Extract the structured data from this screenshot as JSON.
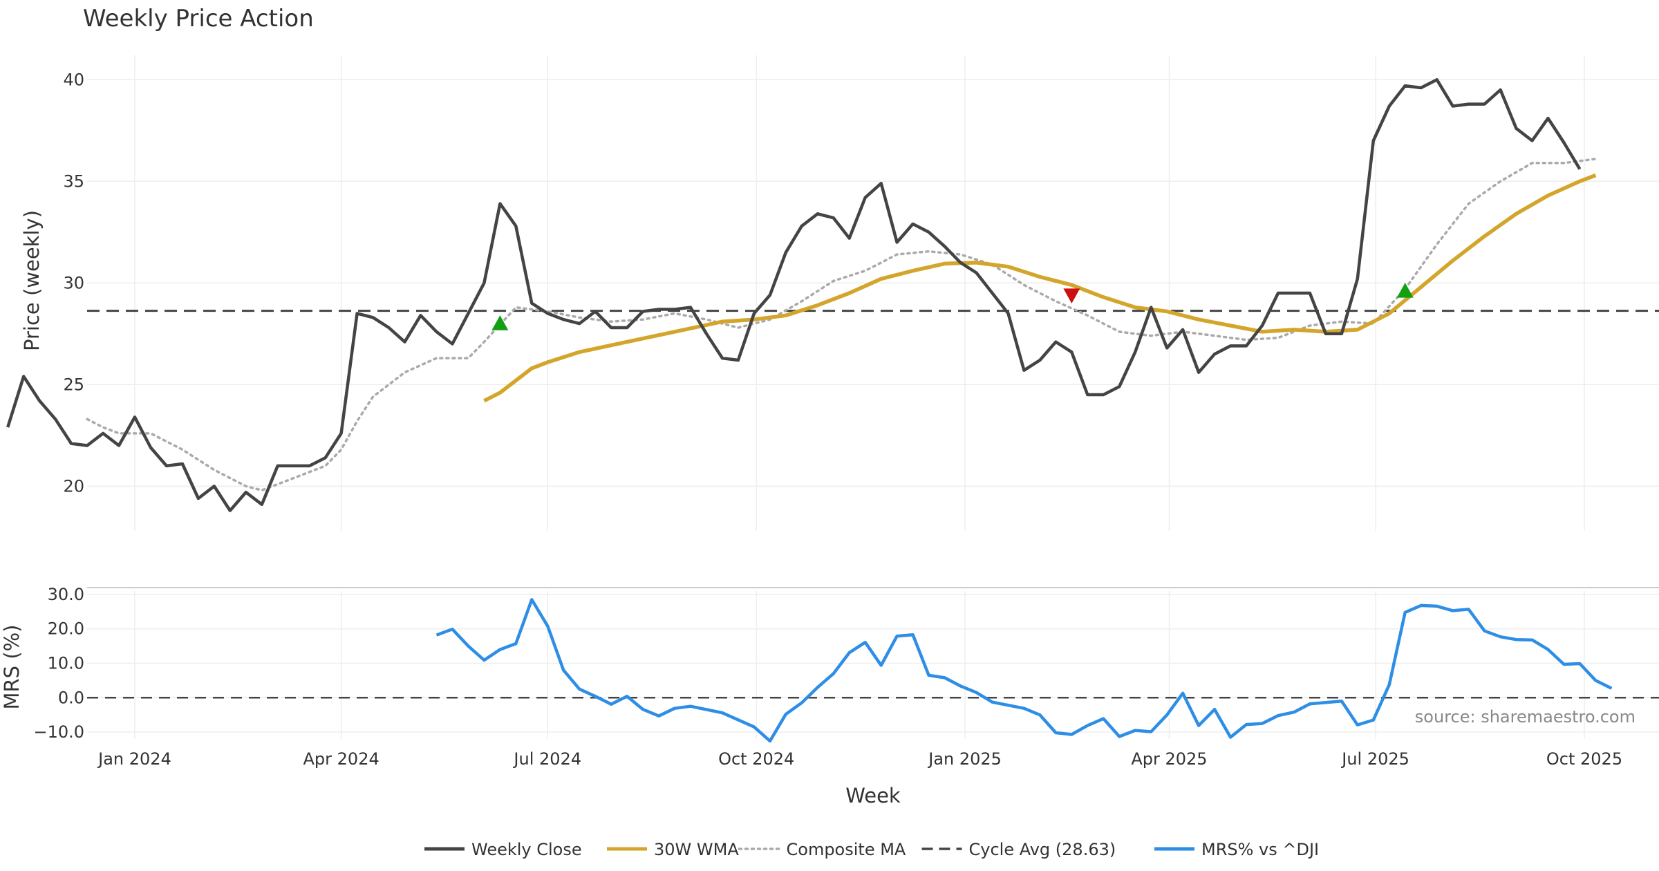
{
  "chart_data": {
    "type": "line",
    "title": "Weekly Price Action",
    "source": "source: sharemaestro.com",
    "xlabel": "Week",
    "x_ticks": [
      {
        "label": "Jan 2024",
        "date": "2024-01-01"
      },
      {
        "label": "Apr 2024",
        "date": "2024-04-01"
      },
      {
        "label": "Jul 2024",
        "date": "2024-07-01"
      },
      {
        "label": "Oct 2024",
        "date": "2024-10-01"
      },
      {
        "label": "Jan 2025",
        "date": "2025-01-01"
      },
      {
        "label": "Apr 2025",
        "date": "2025-04-01"
      },
      {
        "label": "Jul 2025",
        "date": "2025-07-01"
      },
      {
        "label": "Oct 2025",
        "date": "2025-10-01"
      }
    ],
    "price_panel": {
      "ylabel": "Price (weekly)",
      "ylim": [
        17.8,
        41.2
      ],
      "yticks": [
        20,
        25,
        30,
        35,
        40
      ],
      "grid": true,
      "weekly_close": [
        [
          "2023-11-06",
          22.9
        ],
        [
          "2023-11-13",
          25.4
        ],
        [
          "2023-11-20",
          24.2
        ],
        [
          "2023-11-27",
          23.3
        ],
        [
          "2023-12-04",
          22.1
        ],
        [
          "2023-12-11",
          22.0
        ],
        [
          "2023-12-18",
          22.6
        ],
        [
          "2023-12-25",
          22.0
        ],
        [
          "2024-01-01",
          23.4
        ],
        [
          "2024-01-08",
          21.9
        ],
        [
          "2024-01-15",
          21.0
        ],
        [
          "2024-01-22",
          21.1
        ],
        [
          "2024-01-29",
          19.4
        ],
        [
          "2024-02-05",
          20.0
        ],
        [
          "2024-02-12",
          18.8
        ],
        [
          "2024-02-19",
          19.7
        ],
        [
          "2024-02-26",
          19.1
        ],
        [
          "2024-03-04",
          21.0
        ],
        [
          "2024-03-11",
          21.0
        ],
        [
          "2024-03-18",
          21.0
        ],
        [
          "2024-03-25",
          21.4
        ],
        [
          "2024-04-01",
          22.6
        ],
        [
          "2024-04-08",
          28.5
        ],
        [
          "2024-04-15",
          28.3
        ],
        [
          "2024-04-22",
          27.8
        ],
        [
          "2024-04-29",
          27.1
        ],
        [
          "2024-05-06",
          28.4
        ],
        [
          "2024-05-13",
          27.6
        ],
        [
          "2024-05-20",
          27.0
        ],
        [
          "2024-05-27",
          28.5
        ],
        [
          "2024-06-03",
          30.0
        ],
        [
          "2024-06-10",
          33.9
        ],
        [
          "2024-06-17",
          32.8
        ],
        [
          "2024-06-24",
          29.0
        ],
        [
          "2024-07-01",
          28.5
        ],
        [
          "2024-07-08",
          28.2
        ],
        [
          "2024-07-15",
          28.0
        ],
        [
          "2024-07-22",
          28.6
        ],
        [
          "2024-07-29",
          27.8
        ],
        [
          "2024-08-05",
          27.8
        ],
        [
          "2024-08-12",
          28.6
        ],
        [
          "2024-08-19",
          28.7
        ],
        [
          "2024-08-26",
          28.7
        ],
        [
          "2024-09-02",
          28.8
        ],
        [
          "2024-09-09",
          27.5
        ],
        [
          "2024-09-16",
          26.3
        ],
        [
          "2024-09-23",
          26.2
        ],
        [
          "2024-09-30",
          28.5
        ],
        [
          "2024-10-07",
          29.4
        ],
        [
          "2024-10-14",
          31.5
        ],
        [
          "2024-10-21",
          32.8
        ],
        [
          "2024-10-28",
          33.4
        ],
        [
          "2024-11-04",
          33.2
        ],
        [
          "2024-11-11",
          32.2
        ],
        [
          "2024-11-18",
          34.2
        ],
        [
          "2024-11-25",
          34.9
        ],
        [
          "2024-12-02",
          32.0
        ],
        [
          "2024-12-09",
          32.9
        ],
        [
          "2024-12-16",
          32.5
        ],
        [
          "2024-12-23",
          31.8
        ],
        [
          "2024-12-30",
          31.0
        ],
        [
          "2025-01-06",
          30.5
        ],
        [
          "2025-01-13",
          29.5
        ],
        [
          "2025-01-20",
          28.5
        ],
        [
          "2025-01-27",
          25.7
        ],
        [
          "2025-02-03",
          26.2
        ],
        [
          "2025-02-10",
          27.1
        ],
        [
          "2025-02-17",
          26.6
        ],
        [
          "2025-02-24",
          24.5
        ],
        [
          "2025-03-03",
          24.5
        ],
        [
          "2025-03-10",
          24.9
        ],
        [
          "2025-03-17",
          26.6
        ],
        [
          "2025-03-24",
          28.8
        ],
        [
          "2025-03-31",
          26.8
        ],
        [
          "2025-04-07",
          27.7
        ],
        [
          "2025-04-14",
          25.6
        ],
        [
          "2025-04-21",
          26.5
        ],
        [
          "2025-04-28",
          26.9
        ],
        [
          "2025-05-05",
          26.9
        ],
        [
          "2025-05-12",
          27.9
        ],
        [
          "2025-05-19",
          29.5
        ],
        [
          "2025-05-26",
          29.5
        ],
        [
          "2025-06-02",
          29.5
        ],
        [
          "2025-06-09",
          27.5
        ],
        [
          "2025-06-16",
          27.5
        ],
        [
          "2025-06-23",
          30.2
        ],
        [
          "2025-06-30",
          37.0
        ],
        [
          "2025-07-07",
          38.7
        ],
        [
          "2025-07-14",
          39.7
        ],
        [
          "2025-07-21",
          39.6
        ],
        [
          "2025-07-28",
          40.0
        ],
        [
          "2025-08-04",
          38.7
        ],
        [
          "2025-08-11",
          38.8
        ],
        [
          "2025-08-18",
          38.8
        ],
        [
          "2025-08-25",
          39.5
        ],
        [
          "2025-09-01",
          37.6
        ],
        [
          "2025-09-08",
          37.0
        ],
        [
          "2025-09-15",
          38.1
        ],
        [
          "2025-09-22",
          36.9
        ],
        [
          "2025-09-29",
          35.6
        ]
      ],
      "wma_30w": [
        [
          "2024-06-03",
          24.2
        ],
        [
          "2024-06-10",
          24.6
        ],
        [
          "2024-06-17",
          25.2
        ],
        [
          "2024-06-24",
          25.8
        ],
        [
          "2024-07-01",
          26.1
        ],
        [
          "2024-07-15",
          26.6
        ],
        [
          "2024-08-05",
          27.1
        ],
        [
          "2024-08-26",
          27.6
        ],
        [
          "2024-09-16",
          28.1
        ],
        [
          "2024-09-30",
          28.2
        ],
        [
          "2024-10-14",
          28.4
        ],
        [
          "2024-10-28",
          28.9
        ],
        [
          "2024-11-11",
          29.5
        ],
        [
          "2024-11-25",
          30.2
        ],
        [
          "2024-12-09",
          30.6
        ],
        [
          "2024-12-23",
          30.95
        ],
        [
          "2025-01-06",
          31.0
        ],
        [
          "2025-01-20",
          30.8
        ],
        [
          "2025-02-03",
          30.3
        ],
        [
          "2025-02-17",
          29.9
        ],
        [
          "2025-03-03",
          29.3
        ],
        [
          "2025-03-17",
          28.8
        ],
        [
          "2025-03-31",
          28.6
        ],
        [
          "2025-04-14",
          28.2
        ],
        [
          "2025-04-28",
          27.9
        ],
        [
          "2025-05-12",
          27.6
        ],
        [
          "2025-05-26",
          27.7
        ],
        [
          "2025-06-09",
          27.6
        ],
        [
          "2025-06-23",
          27.7
        ],
        [
          "2025-07-07",
          28.5
        ],
        [
          "2025-07-21",
          29.8
        ],
        [
          "2025-08-04",
          31.1
        ],
        [
          "2025-08-18",
          32.3
        ],
        [
          "2025-09-01",
          33.4
        ],
        [
          "2025-09-15",
          34.3
        ],
        [
          "2025-09-29",
          35.0
        ],
        [
          "2025-10-06",
          35.3
        ]
      ],
      "composite_ma": [
        [
          "2023-12-11",
          23.3
        ],
        [
          "2023-12-18",
          22.9
        ],
        [
          "2023-12-25",
          22.6
        ],
        [
          "2024-01-08",
          22.6
        ],
        [
          "2024-01-22",
          21.8
        ],
        [
          "2024-02-05",
          20.8
        ],
        [
          "2024-02-19",
          20.0
        ],
        [
          "2024-02-26",
          19.8
        ],
        [
          "2024-03-11",
          20.4
        ],
        [
          "2024-03-25",
          21.0
        ],
        [
          "2024-04-01",
          21.8
        ],
        [
          "2024-04-08",
          23.2
        ],
        [
          "2024-04-15",
          24.4
        ],
        [
          "2024-04-29",
          25.6
        ],
        [
          "2024-05-13",
          26.3
        ],
        [
          "2024-05-27",
          26.3
        ],
        [
          "2024-06-03",
          27.1
        ],
        [
          "2024-06-17",
          28.8
        ],
        [
          "2024-07-01",
          28.6
        ],
        [
          "2024-07-15",
          28.3
        ],
        [
          "2024-07-29",
          28.1
        ],
        [
          "2024-08-12",
          28.2
        ],
        [
          "2024-08-26",
          28.5
        ],
        [
          "2024-09-09",
          28.2
        ],
        [
          "2024-09-23",
          27.8
        ],
        [
          "2024-10-07",
          28.2
        ],
        [
          "2024-10-21",
          29.1
        ],
        [
          "2024-11-04",
          30.1
        ],
        [
          "2024-11-18",
          30.6
        ],
        [
          "2024-12-02",
          31.4
        ],
        [
          "2024-12-16",
          31.55
        ],
        [
          "2024-12-30",
          31.4
        ],
        [
          "2025-01-13",
          30.9
        ],
        [
          "2025-01-27",
          29.9
        ],
        [
          "2025-02-10",
          29.1
        ],
        [
          "2025-02-24",
          28.4
        ],
        [
          "2025-03-10",
          27.6
        ],
        [
          "2025-03-24",
          27.4
        ],
        [
          "2025-04-07",
          27.6
        ],
        [
          "2025-04-21",
          27.4
        ],
        [
          "2025-05-05",
          27.2
        ],
        [
          "2025-05-19",
          27.3
        ],
        [
          "2025-06-02",
          27.9
        ],
        [
          "2025-06-16",
          28.1
        ],
        [
          "2025-06-30",
          28.0
        ],
        [
          "2025-07-14",
          29.7
        ],
        [
          "2025-07-28",
          31.9
        ],
        [
          "2025-08-11",
          33.9
        ],
        [
          "2025-08-25",
          35.0
        ],
        [
          "2025-09-08",
          35.9
        ],
        [
          "2025-09-22",
          35.9
        ],
        [
          "2025-10-06",
          36.1
        ]
      ],
      "cycle_avg": 28.63,
      "markers": [
        {
          "type": "buy",
          "date": "2024-06-10",
          "value": 28.0
        },
        {
          "type": "sell",
          "date": "2025-02-17",
          "value": 29.4
        },
        {
          "type": "buy",
          "date": "2025-07-14",
          "value": 29.6
        }
      ]
    },
    "mrs_panel": {
      "ylabel": "MRS (%)",
      "ylim": [
        -12,
        31
      ],
      "yticks": [
        30,
        20,
        10,
        0,
        -10
      ],
      "ytick_labels": [
        "30.0",
        "20.0",
        "10.0",
        "0.0",
        "−10.0"
      ],
      "zero_line": 0,
      "mrs_vs_dji": [
        [
          "2024-05-13",
          18.2
        ],
        [
          "2024-05-20",
          19.9
        ],
        [
          "2024-05-27",
          15.0
        ],
        [
          "2024-06-03",
          10.9
        ],
        [
          "2024-06-10",
          14.0
        ],
        [
          "2024-06-17",
          15.7
        ],
        [
          "2024-06-24",
          28.5
        ],
        [
          "2024-07-01",
          20.8
        ],
        [
          "2024-07-08",
          8.0
        ],
        [
          "2024-07-15",
          2.5
        ],
        [
          "2024-07-22",
          0.4
        ],
        [
          "2024-07-29",
          -1.9
        ],
        [
          "2024-08-05",
          0.4
        ],
        [
          "2024-08-12",
          -3.4
        ],
        [
          "2024-08-19",
          -5.3
        ],
        [
          "2024-08-26",
          -3.1
        ],
        [
          "2024-09-02",
          -2.5
        ],
        [
          "2024-09-16",
          -4.4
        ],
        [
          "2024-09-30",
          -8.5
        ],
        [
          "2024-10-07",
          -12.6
        ],
        [
          "2024-10-14",
          -4.8
        ],
        [
          "2024-10-21",
          -1.5
        ],
        [
          "2024-10-28",
          3.0
        ],
        [
          "2024-11-04",
          7.0
        ],
        [
          "2024-11-11",
          13.1
        ],
        [
          "2024-11-18",
          16.1
        ],
        [
          "2024-11-25",
          9.4
        ],
        [
          "2024-12-02",
          17.9
        ],
        [
          "2024-12-09",
          18.3
        ],
        [
          "2024-12-16",
          6.5
        ],
        [
          "2024-12-23",
          5.8
        ],
        [
          "2024-12-30",
          3.4
        ],
        [
          "2025-01-06",
          1.5
        ],
        [
          "2025-01-13",
          -1.3
        ],
        [
          "2025-01-27",
          -3.1
        ],
        [
          "2025-02-03",
          -5.0
        ],
        [
          "2025-02-10",
          -10.2
        ],
        [
          "2025-02-17",
          -10.7
        ],
        [
          "2025-02-24",
          -8.1
        ],
        [
          "2025-03-03",
          -6.1
        ],
        [
          "2025-03-10",
          -11.3
        ],
        [
          "2025-03-17",
          -9.5
        ],
        [
          "2025-03-24",
          -9.9
        ],
        [
          "2025-03-31",
          -5.0
        ],
        [
          "2025-04-07",
          1.3
        ],
        [
          "2025-04-14",
          -8.1
        ],
        [
          "2025-04-21",
          -3.4
        ],
        [
          "2025-04-28",
          -11.5
        ],
        [
          "2025-05-05",
          -7.8
        ],
        [
          "2025-05-12",
          -7.5
        ],
        [
          "2025-05-19",
          -5.2
        ],
        [
          "2025-05-26",
          -4.2
        ],
        [
          "2025-06-02",
          -1.8
        ],
        [
          "2025-06-16",
          -1.0
        ],
        [
          "2025-06-23",
          -7.9
        ],
        [
          "2025-06-30",
          -6.5
        ],
        [
          "2025-07-07",
          3.8
        ],
        [
          "2025-07-14",
          24.8
        ],
        [
          "2025-07-21",
          26.8
        ],
        [
          "2025-07-28",
          26.6
        ],
        [
          "2025-08-04",
          25.3
        ],
        [
          "2025-08-11",
          25.7
        ],
        [
          "2025-08-18",
          19.4
        ],
        [
          "2025-08-25",
          17.7
        ],
        [
          "2025-09-01",
          16.9
        ],
        [
          "2025-09-08",
          16.8
        ],
        [
          "2025-09-15",
          14.0
        ],
        [
          "2025-09-22",
          9.7
        ],
        [
          "2025-09-29",
          9.9
        ],
        [
          "2025-10-06",
          5.0
        ],
        [
          "2025-10-13",
          2.7
        ]
      ]
    },
    "legend": {
      "position": "bottom-center",
      "entries": [
        {
          "label": "Weekly Close",
          "style": "solid",
          "color": "#444444"
        },
        {
          "label": "30W WMA",
          "style": "solid",
          "color": "#D4A52B"
        },
        {
          "label": "Composite MA",
          "style": "dotted",
          "color": "#AAAAAA"
        },
        {
          "label": "Cycle Avg (28.63)",
          "style": "dashed",
          "color": "#444444"
        },
        {
          "label": "MRS% vs ^DJI",
          "style": "solid",
          "color": "#2E8EE6"
        }
      ]
    },
    "colors": {
      "close": "#444444",
      "wma": "#D4A52B",
      "composite": "#AAAAAA",
      "cycle": "#444444",
      "mrs": "#2E8EE6",
      "buy": "#12A012",
      "sell": "#CC1010",
      "grid": "#EEEEEE"
    }
  }
}
